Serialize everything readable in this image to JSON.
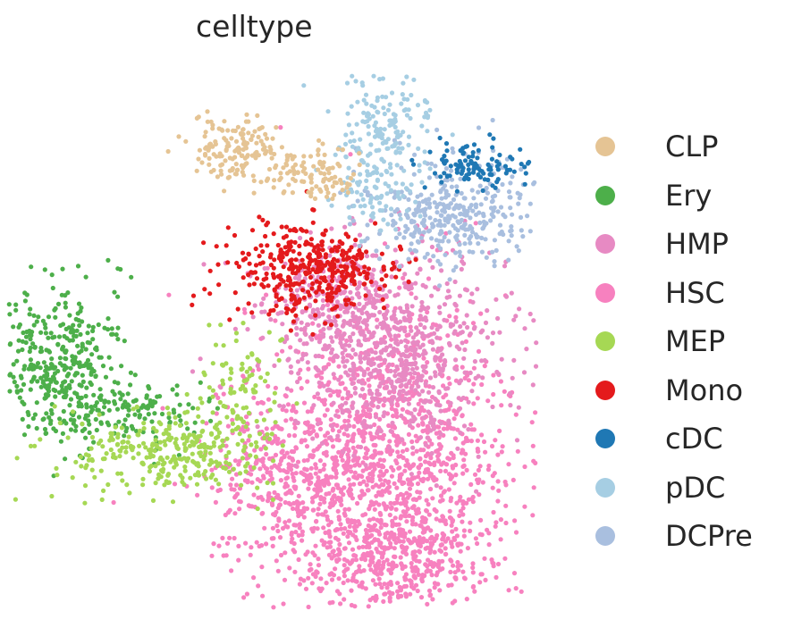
{
  "chart_data": {
    "type": "scatter",
    "title": "celltype",
    "xlabel": "",
    "ylabel": "",
    "grid": false,
    "axes_visible": false,
    "legend_position": "right",
    "series": [
      {
        "name": "CLP",
        "color": "#e5c494"
      },
      {
        "name": "Ery",
        "color": "#4daf4a"
      },
      {
        "name": "HMP",
        "color": "#e78ac3"
      },
      {
        "name": "HSC",
        "color": "#f781bf"
      },
      {
        "name": "MEP",
        "color": "#a6d854"
      },
      {
        "name": "Mono",
        "color": "#e41a1c"
      },
      {
        "name": "cDC",
        "color": "#1f78b4"
      },
      {
        "name": "pDC",
        "color": "#a6cee3"
      },
      {
        "name": "DCPre",
        "color": "#a9bfdf"
      }
    ]
  }
}
